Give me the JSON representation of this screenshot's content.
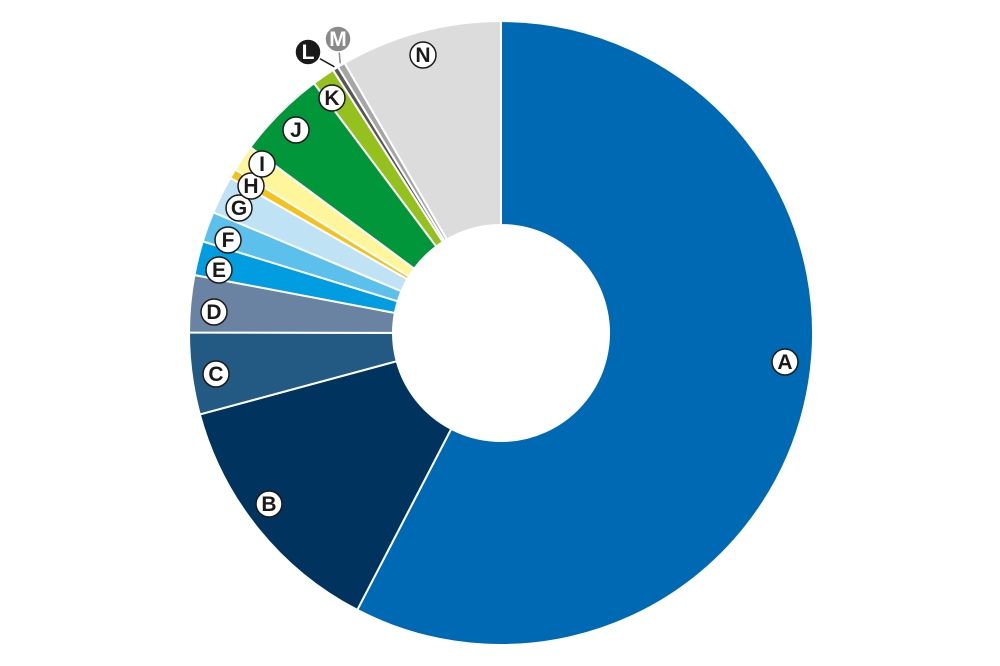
{
  "chart_data": {
    "type": "pie",
    "subtype": "donut",
    "labels": [
      "A",
      "B",
      "C",
      "D",
      "E",
      "F",
      "G",
      "H",
      "I",
      "J",
      "K",
      "L",
      "M",
      "N"
    ],
    "values": [
      58.6,
      13.4,
      4.3,
      3.0,
      1.8,
      1.6,
      2.0,
      0.5,
      1.4,
      4.7,
      1.2,
      0.3,
      0.4,
      8.5
    ],
    "colors": [
      "#0069b3",
      "#00345f",
      "#235a84",
      "#6a83a3",
      "#009ee0",
      "#5bc0eb",
      "#bfe2f5",
      "#f5c21c",
      "#fff59b",
      "#009639",
      "#95c11f",
      "#575757",
      "#a6a6a6",
      "#dcdcdd"
    ],
    "label_styles": [
      "light",
      "light",
      "light",
      "light",
      "light",
      "light",
      "light",
      "light",
      "light",
      "light",
      "light",
      "dark",
      "grey",
      "light"
    ],
    "start_angle": "12 o'clock",
    "direction": "clockwise",
    "legend": "none",
    "title": ""
  }
}
